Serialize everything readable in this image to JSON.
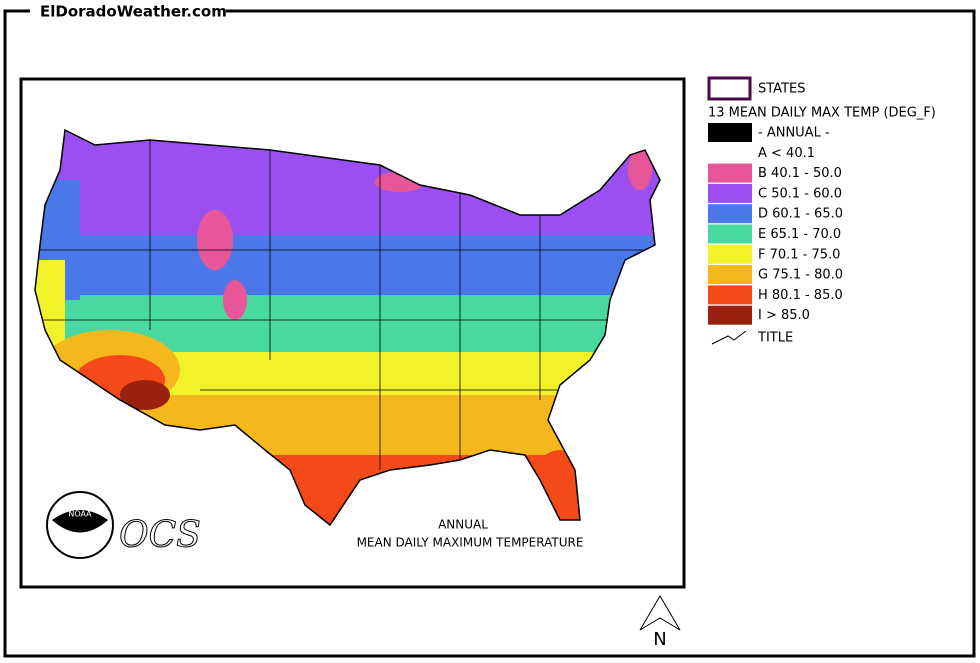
{
  "site": "ElDoradoWeather.com",
  "map": {
    "caption": [
      "ANNUAL",
      "MEAN DAILY MAXIMUM TEMPERATURE"
    ],
    "logo_text": "OCS",
    "noaa": "NOAA",
    "north": "N"
  },
  "legend": {
    "states_label": "STATES",
    "title": "13 MEAN DAILY MAX TEMP (DEG_F)",
    "items": [
      {
        "label": "- ANNUAL -",
        "color": "#000000"
      },
      {
        "label": "A < 40.1"
      },
      {
        "label": "B 40.1 - 50.0",
        "color": "#e8569a"
      },
      {
        "label": "C 50.1 - 60.0",
        "color": "#9b4ff0"
      },
      {
        "label": "D 60.1 - 65.0",
        "color": "#4a78e8"
      },
      {
        "label": "E 65.1 - 70.0",
        "color": "#48d8a0"
      },
      {
        "label": "F 70.1 - 75.0",
        "color": "#f2f22a"
      },
      {
        "label": "G 75.1 - 80.0",
        "color": "#f4b81c"
      },
      {
        "label": "H 80.1 - 85.0",
        "color": "#f44a1a"
      },
      {
        "label": "I > 85.0",
        "color": "#9a2010"
      }
    ],
    "title_label": "TITLE"
  }
}
